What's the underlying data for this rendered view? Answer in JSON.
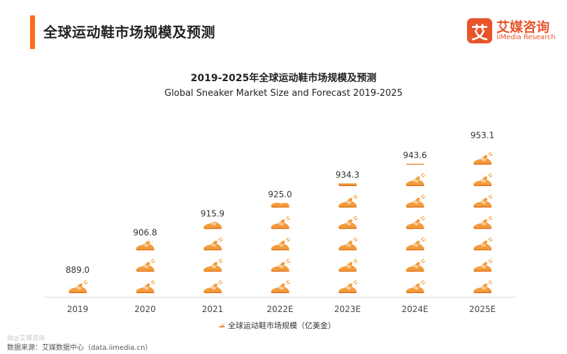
{
  "page": {
    "title": "全球运动鞋市场规模及预测"
  },
  "logo": {
    "mark": "艾",
    "name_cn": "艾媒咨询",
    "name_en": "iiMedia Research"
  },
  "source": "数据来源：艾媒数据中心（data.iimedia.cn）",
  "watermark": "由@艾媒咨询",
  "colors": {
    "accent": "#ff6a1a",
    "icon": "#f39c3d",
    "icon_dark": "#e2741b"
  },
  "chart_data": {
    "type": "bar",
    "title": "2019-2025年全球运动鞋市场规模及预测",
    "subtitle": "Global Sneaker Market Size and Forecast 2019-2025",
    "categories": [
      "2019",
      "2020",
      "2021",
      "2022E",
      "2023E",
      "2024E",
      "2025E"
    ],
    "series": [
      {
        "name": "全球运动鞋市场规模（亿美金）",
        "values": [
          889.0,
          906.8,
          915.9,
          925.0,
          934.3,
          943.6,
          953.1
        ],
        "labels": [
          "889.0",
          "906.8",
          "915.9",
          "925.0",
          "934.3",
          "943.6",
          "953.1"
        ]
      }
    ],
    "ylim": [
      880,
      955
    ],
    "grid": false,
    "legend": "bottom",
    "mark": "sneaker-icon"
  }
}
